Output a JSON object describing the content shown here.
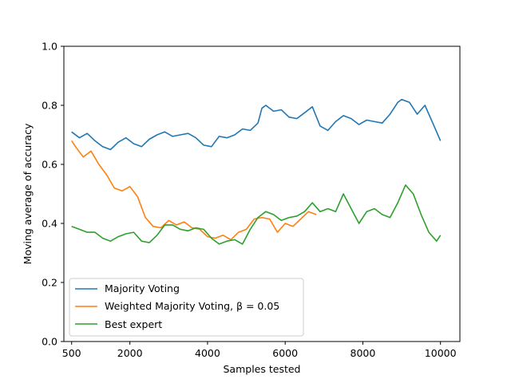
{
  "chart_data": {
    "type": "line",
    "title": "",
    "xlabel": "Samples tested",
    "ylabel": "Moving average of accuracy",
    "xlim": [
      300,
      10500
    ],
    "ylim": [
      0.0,
      1.0
    ],
    "xticks": [
      500,
      2000,
      4000,
      6000,
      8000,
      10000
    ],
    "xtick_labels": [
      "500",
      "2000",
      "4000",
      "6000",
      "8000",
      "10000"
    ],
    "yticks": [
      0.0,
      0.2,
      0.4,
      0.6,
      0.8,
      1.0
    ],
    "ytick_labels": [
      "0.0",
      "0.2",
      "0.4",
      "0.6",
      "0.8",
      "1.0"
    ],
    "grid": false,
    "legend_position": "lower-left",
    "series": [
      {
        "name": "Majority Voting",
        "color": "#1f77b4",
        "x": [
          500,
          700,
          900,
          1100,
          1300,
          1500,
          1700,
          1900,
          2100,
          2300,
          2500,
          2700,
          2900,
          3100,
          3300,
          3500,
          3700,
          3900,
          4100,
          4300,
          4500,
          4700,
          4900,
          5100,
          5300,
          5400,
          5500,
          5700,
          5900,
          6100,
          6300,
          6500,
          6700,
          6900,
          7100,
          7300,
          7500,
          7700,
          7900,
          8100,
          8300,
          8500,
          8700,
          8900,
          9000,
          9200,
          9400,
          9600,
          9800,
          10000
        ],
        "values": [
          0.71,
          0.69,
          0.705,
          0.68,
          0.66,
          0.65,
          0.675,
          0.69,
          0.67,
          0.66,
          0.685,
          0.7,
          0.71,
          0.695,
          0.7,
          0.705,
          0.69,
          0.665,
          0.66,
          0.695,
          0.69,
          0.7,
          0.72,
          0.715,
          0.74,
          0.79,
          0.8,
          0.78,
          0.785,
          0.76,
          0.755,
          0.775,
          0.795,
          0.73,
          0.715,
          0.745,
          0.765,
          0.755,
          0.735,
          0.75,
          0.745,
          0.74,
          0.77,
          0.81,
          0.82,
          0.81,
          0.77,
          0.8,
          0.74,
          0.68
        ]
      },
      {
        "name": "Weighted Majority Voting, β = 0.05",
        "color": "#ff7f0e",
        "x": [
          500,
          600,
          800,
          1000,
          1200,
          1400,
          1600,
          1800,
          2000,
          2200,
          2400,
          2600,
          2800,
          3000,
          3200,
          3400,
          3600,
          3800,
          4000,
          4200,
          4400,
          4600,
          4800,
          5000,
          5200,
          5400,
          5600,
          5800,
          6000,
          6200,
          6400,
          6600,
          6800
        ],
        "values": [
          0.68,
          0.66,
          0.625,
          0.645,
          0.6,
          0.565,
          0.52,
          0.51,
          0.525,
          0.49,
          0.42,
          0.39,
          0.385,
          0.41,
          0.395,
          0.405,
          0.385,
          0.38,
          0.355,
          0.35,
          0.36,
          0.345,
          0.37,
          0.38,
          0.415,
          0.42,
          0.415,
          0.37,
          0.4,
          0.39,
          0.415,
          0.44,
          0.43
        ]
      },
      {
        "name": "Best expert",
        "color": "#2ca02c",
        "x": [
          500,
          700,
          900,
          1100,
          1300,
          1500,
          1700,
          1900,
          2100,
          2300,
          2500,
          2700,
          2900,
          3100,
          3300,
          3500,
          3700,
          3900,
          4100,
          4300,
          4500,
          4700,
          4900,
          5100,
          5300,
          5500,
          5700,
          5900,
          6100,
          6300,
          6500,
          6700,
          6900,
          7100,
          7300,
          7500,
          7700,
          7900,
          8100,
          8300,
          8500,
          8700,
          8900,
          9100,
          9300,
          9500,
          9700,
          9900,
          10000
        ],
        "values": [
          0.39,
          0.38,
          0.37,
          0.37,
          0.35,
          0.34,
          0.355,
          0.365,
          0.37,
          0.34,
          0.335,
          0.36,
          0.395,
          0.395,
          0.38,
          0.375,
          0.385,
          0.38,
          0.35,
          0.33,
          0.34,
          0.345,
          0.33,
          0.38,
          0.42,
          0.44,
          0.43,
          0.41,
          0.42,
          0.425,
          0.44,
          0.47,
          0.44,
          0.45,
          0.44,
          0.5,
          0.45,
          0.4,
          0.44,
          0.45,
          0.43,
          0.42,
          0.47,
          0.53,
          0.5,
          0.43,
          0.37,
          0.34,
          0.36
        ]
      }
    ]
  },
  "legend": {
    "items": [
      {
        "label": "Majority Voting",
        "color": "#1f77b4"
      },
      {
        "label": "Weighted Majority Voting, β = 0.05",
        "color": "#ff7f0e"
      },
      {
        "label": "Best expert",
        "color": "#2ca02c"
      }
    ]
  }
}
